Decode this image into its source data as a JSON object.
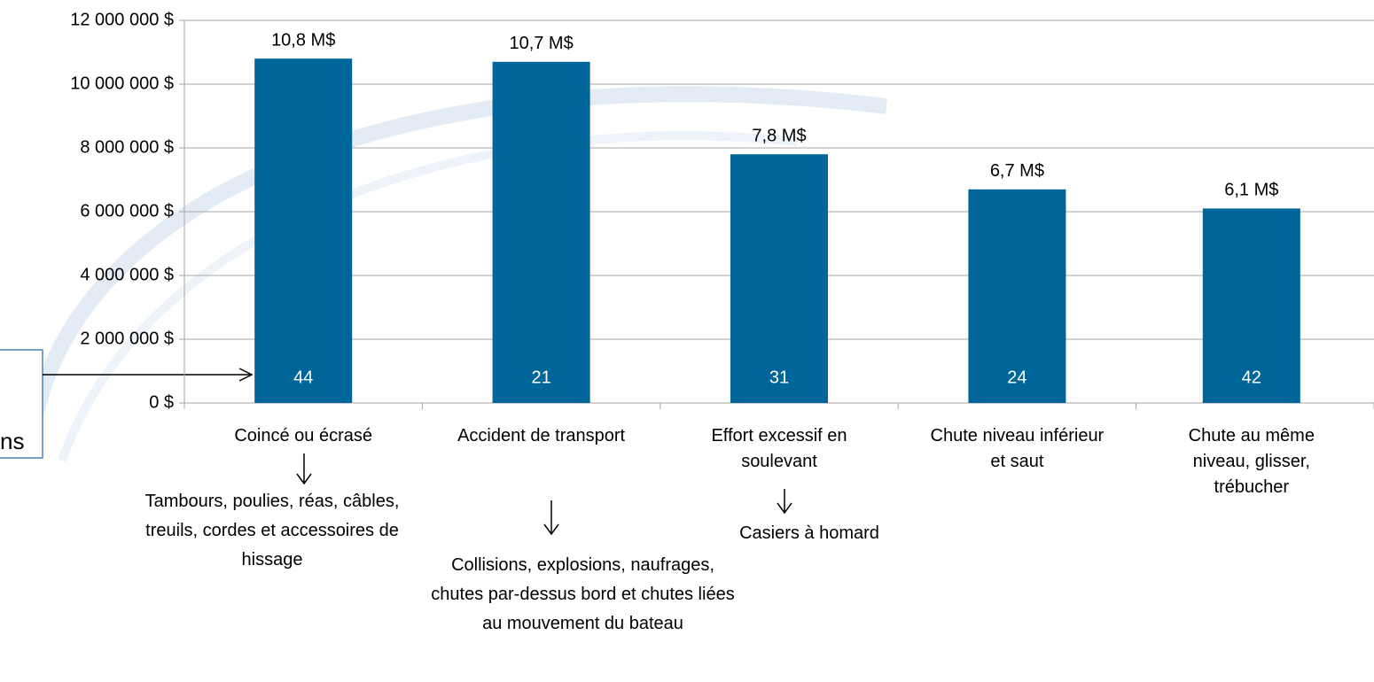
{
  "chart_data": {
    "type": "bar",
    "categories": [
      "Coincé ou écrasé",
      "Accident de transport",
      "Effort excessif en soulevant",
      "Chute niveau inférieur et saut",
      "Chute au même niveau, glisser, trébucher"
    ],
    "values": [
      10800000,
      10700000,
      7800000,
      6700000,
      6100000
    ],
    "value_labels": [
      "10,8 M$",
      "10,7 M$",
      "7,8 M$",
      "6,7 M$",
      "6,1 M$"
    ],
    "counts": [
      44,
      21,
      31,
      24,
      42
    ],
    "color": "#006699",
    "ylim": [
      0,
      12000000
    ],
    "yticks": [
      {
        "value": 0,
        "label": "0 $"
      },
      {
        "value": 2000000,
        "label": "2 000 000 $"
      },
      {
        "value": 4000000,
        "label": "4 000 000 $"
      },
      {
        "value": 6000000,
        "label": "6 000 000 $"
      },
      {
        "value": 8000000,
        "label": "8 000 000 $"
      },
      {
        "value": 10000000,
        "label": "10 000 000 $"
      },
      {
        "value": 12000000,
        "label": "12 000 000 $"
      }
    ],
    "grid": true,
    "annotations": [
      "Tambours, poulies, réas, câbles, treuils, cordes et accessoires de hissage",
      "Collisions, explosions, naufrages, chutes par-dessus bord et chutes liées au mouvement du bateau",
      "Casiers à homard"
    ],
    "box_text": "ns"
  }
}
